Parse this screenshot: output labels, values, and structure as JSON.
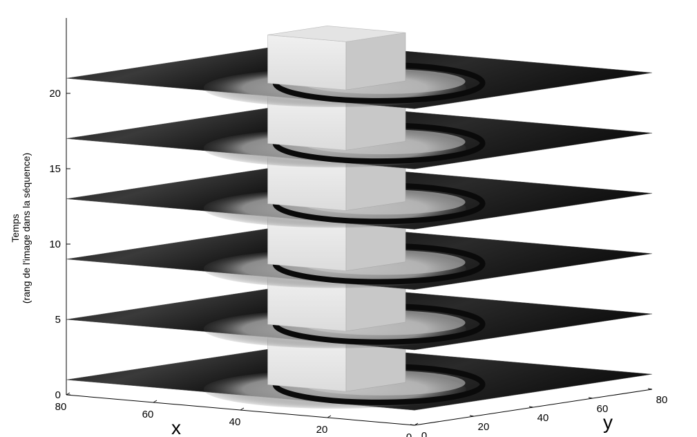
{
  "chart_data": {
    "type": "3d-stacked-slices",
    "title": "",
    "xlabel": "x",
    "ylabel": "y",
    "zlabel_lines": [
      "Temps",
      "(rang de l'image dans la séquence)"
    ],
    "xlim": [
      0,
      80
    ],
    "ylim": [
      0,
      80
    ],
    "zlim": [
      0,
      25
    ],
    "x_ticks": [
      0,
      20,
      40,
      60,
      80
    ],
    "y_ticks": [
      0,
      20,
      40,
      60,
      80
    ],
    "z_ticks": [
      0,
      5,
      10,
      15,
      20
    ],
    "slices": [
      {
        "time": 1
      },
      {
        "time": 5
      },
      {
        "time": 9
      },
      {
        "time": 13
      },
      {
        "time": 17
      },
      {
        "time": 21
      }
    ],
    "colors": {
      "slice_dark": "#1c1c1c",
      "slice_mid": "#6e6e6e",
      "slice_light": "#d8d8d8",
      "cube_top": "#e2e2e2",
      "cube_front": "#ededed",
      "cube_side": "#c9c9c9"
    }
  }
}
